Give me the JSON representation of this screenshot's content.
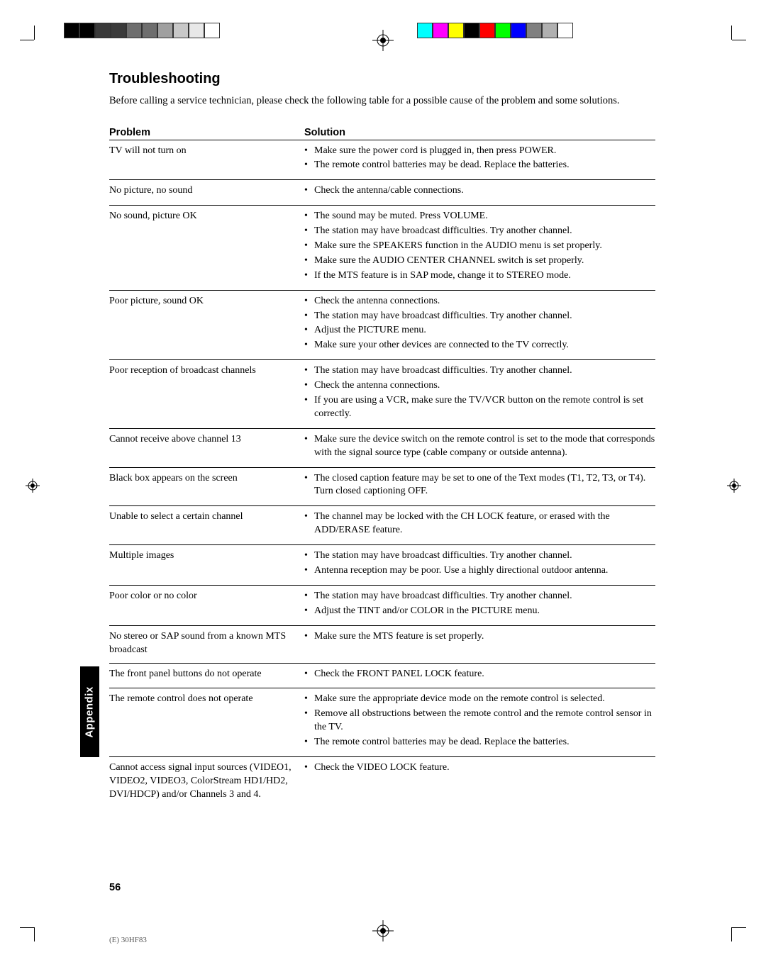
{
  "title": "Troubleshooting",
  "intro": "Before calling a service technician, please check the following table for a possible cause of the problem and some solutions.",
  "headers": {
    "problem": "Problem",
    "solution": "Solution"
  },
  "side_tab": "Appendix",
  "page_number": "56",
  "footer_code": "(E) 30HF83",
  "color_bar_left": [
    "#000000",
    "#000000",
    "#3a3a3a",
    "#3a3a3a",
    "#6e6e6e",
    "#6e6e6e",
    "#a0a0a0",
    "#c8c8c8",
    "#e8e8e8",
    "#ffffff"
  ],
  "color_bar_right": [
    "#00ffff",
    "#ff00ff",
    "#ffff00",
    "#000000",
    "#ff0000",
    "#00ff00",
    "#0000ff",
    "#808080",
    "#b0b0b0",
    "#ffffff"
  ],
  "rows": [
    {
      "problem": "TV will not turn on",
      "solutions": [
        "Make sure the power cord is plugged in, then press POWER.",
        "The remote control batteries may be dead. Replace the batteries."
      ]
    },
    {
      "problem": "No picture, no sound",
      "solutions": [
        "Check the antenna/cable connections."
      ]
    },
    {
      "problem": "No sound, picture OK",
      "solutions": [
        "The sound may be muted. Press VOLUME.",
        "The station may have broadcast difficulties. Try another channel.",
        "Make sure the SPEAKERS function in the AUDIO menu is set properly.",
        "Make sure the AUDIO CENTER CHANNEL switch is set properly.",
        "If the MTS feature is in SAP mode, change it to STEREO mode."
      ]
    },
    {
      "problem": "Poor picture, sound OK",
      "solutions": [
        "Check the antenna connections.",
        "The station may have broadcast difficulties. Try another channel.",
        "Adjust the PICTURE menu.",
        "Make sure your other devices are connected to the TV correctly."
      ]
    },
    {
      "problem": "Poor reception of broadcast channels",
      "solutions": [
        "The station may have broadcast difficulties. Try another channel.",
        "Check the antenna connections.",
        "If you are using a VCR, make sure the TV/VCR button on the remote control is set correctly."
      ]
    },
    {
      "problem": "Cannot receive above channel 13",
      "solutions": [
        "Make sure the device switch on the remote control is set to the mode that corresponds with the signal source type (cable company or outside antenna)."
      ]
    },
    {
      "problem": "Black box appears on the screen",
      "solutions": [
        "The closed caption feature may be set to one of the Text modes (T1, T2, T3, or T4). Turn closed captioning OFF."
      ]
    },
    {
      "problem": "Unable to select a certain channel",
      "solutions": [
        "The channel may be locked with the CH LOCK feature, or erased with the ADD/ERASE feature."
      ]
    },
    {
      "problem": "Multiple images",
      "solutions": [
        "The station may have broadcast difficulties. Try another channel.",
        "Antenna reception may be poor. Use a highly directional outdoor antenna."
      ]
    },
    {
      "problem": "Poor color or no color",
      "solutions": [
        "The station may have broadcast difficulties. Try another channel.",
        "Adjust the TINT and/or COLOR in the PICTURE menu."
      ]
    },
    {
      "problem": "No stereo or SAP sound from a known MTS broadcast",
      "solutions": [
        "Make sure the MTS feature is set properly."
      ]
    },
    {
      "problem": "The front panel buttons do not operate",
      "solutions": [
        "Check the FRONT PANEL LOCK feature."
      ]
    },
    {
      "problem": "The remote control does not operate",
      "solutions": [
        "Make sure the appropriate device mode on the remote control is selected.",
        "Remove all obstructions between the remote control and the remote control sensor in the TV.",
        "The remote control batteries may be dead. Replace the batteries."
      ]
    },
    {
      "problem": "Cannot access signal input sources (VIDEO1, VIDEO2, VIDEO3, ColorStream HD1/HD2, DVI/HDCP) and/or Channels 3 and 4.",
      "solutions": [
        "Check the VIDEO LOCK feature."
      ]
    }
  ]
}
